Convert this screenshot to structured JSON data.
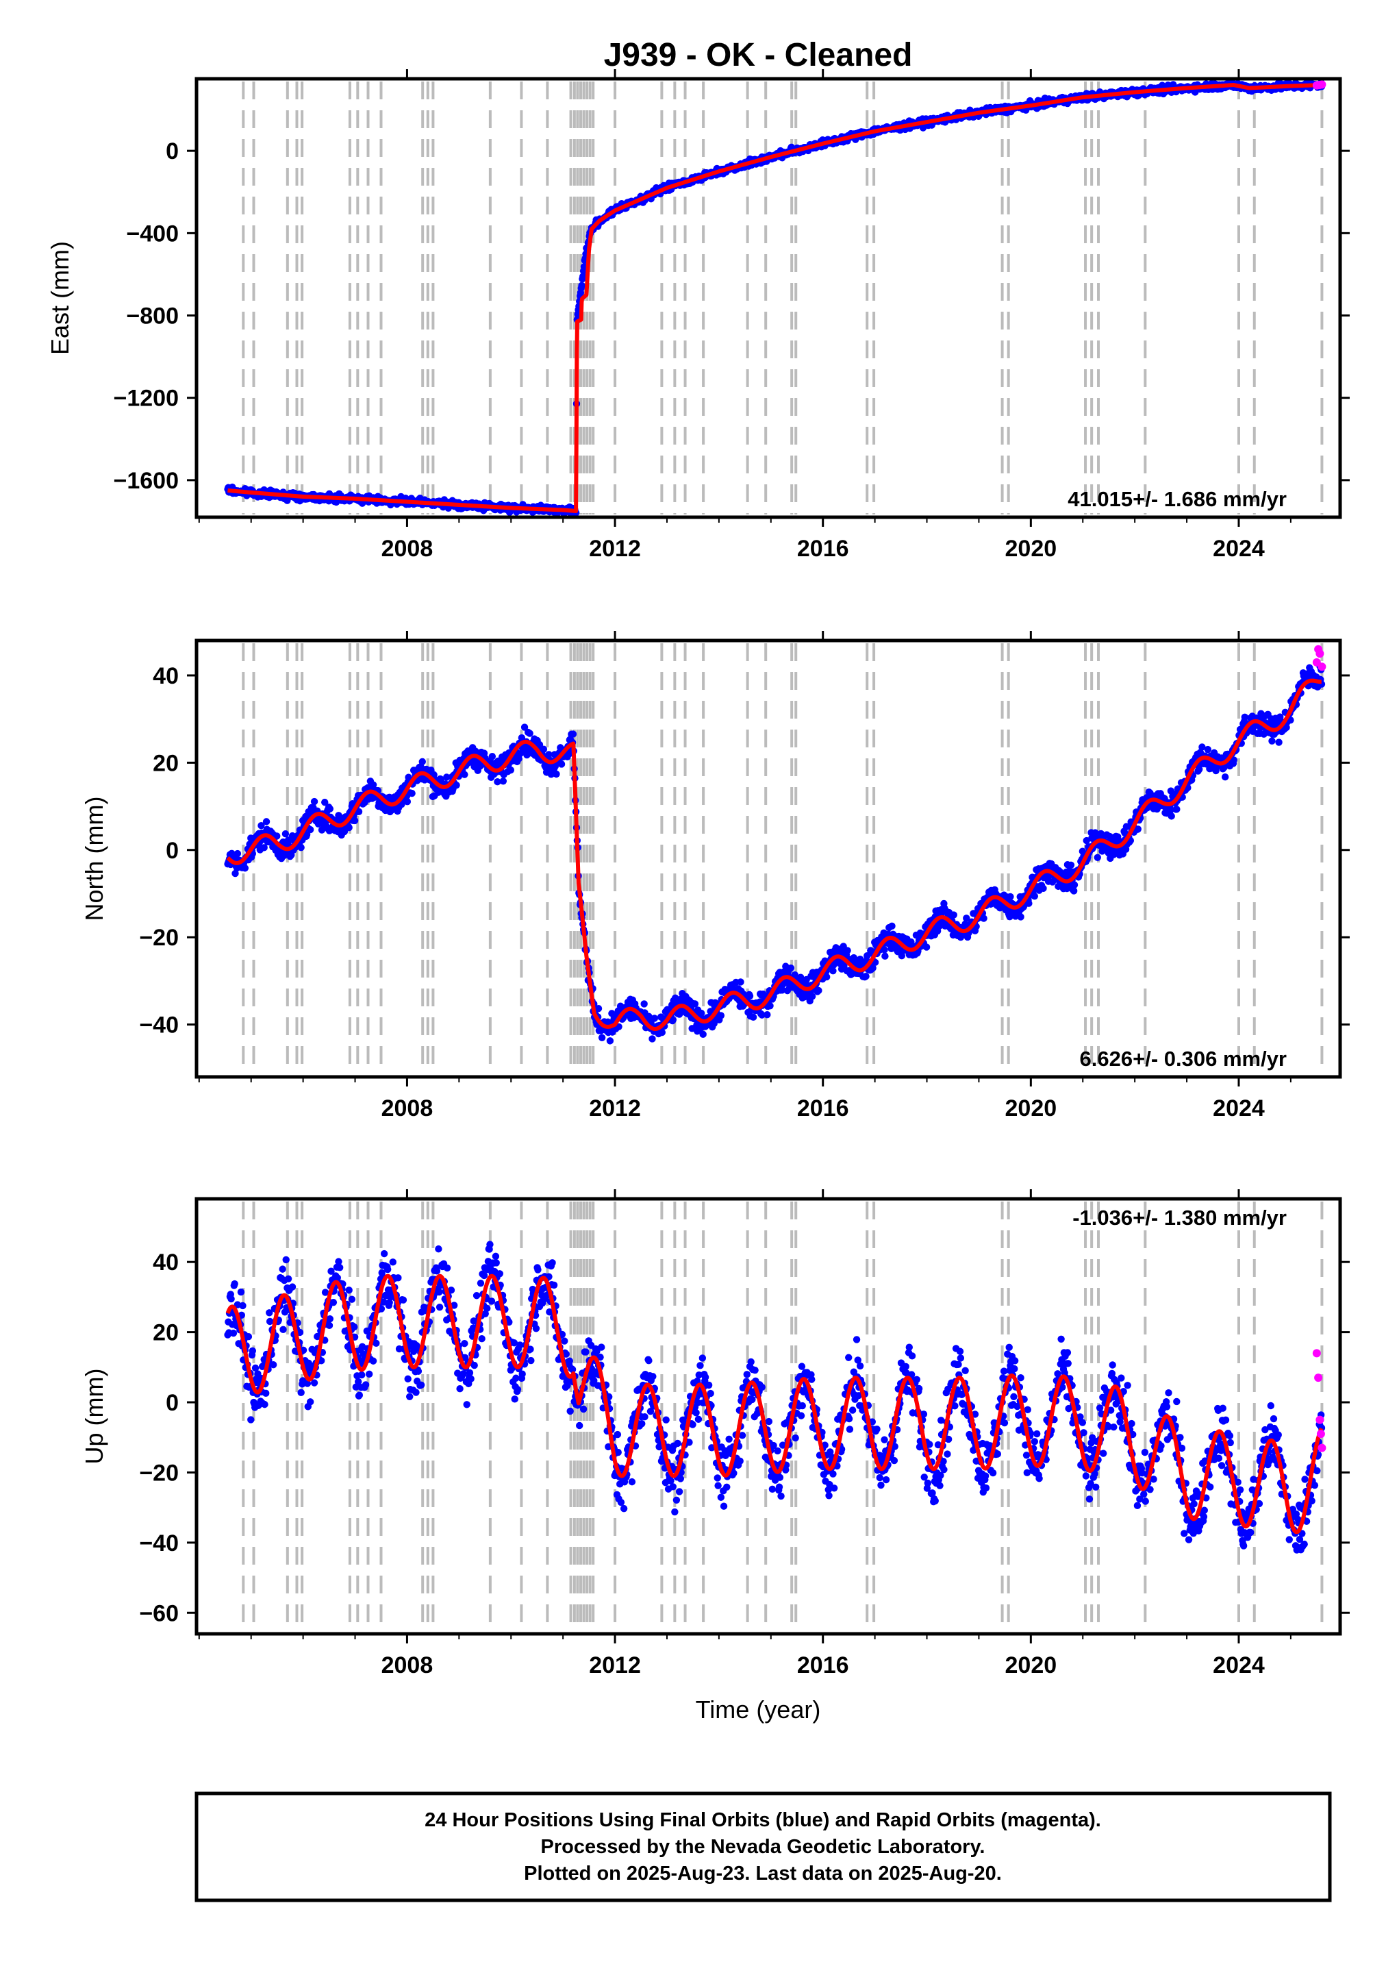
{
  "title": "J939  - OK - Cleaned",
  "x_axis": {
    "label": "Time (year)",
    "range": [
      2003.95,
      2025.95
    ],
    "ticks": [
      2008,
      2012,
      2016,
      2020,
      2024
    ],
    "tick_labels": [
      "2008",
      "2012",
      "2016",
      "2020",
      "2024"
    ]
  },
  "footer": {
    "line1": "24 Hour Positions Using Final Orbits (blue) and Rapid Orbits (magenta).",
    "line2": "Processed by the Nevada Geodetic Laboratory.",
    "line3": "Plotted on 2025-Aug-23. Last data on 2025-Aug-20."
  },
  "colors": {
    "final_orbits": "#0000ff",
    "rapid_orbits": "#ff00ff",
    "model_fit": "#ff0000",
    "event_lines": "#bbbbbb"
  },
  "chart_data": [
    {
      "type": "scatter",
      "panel": "east",
      "ylabel": "East (mm)",
      "ylim": [
        -1780,
        350
      ],
      "yticks": [
        0,
        -400,
        -800,
        -1200,
        -1600
      ],
      "ytick_labels": [
        "0",
        "−400",
        "−800",
        "−1200",
        "−1600"
      ],
      "rate_text": "41.015+/- 1.686 mm/yr",
      "rate_position": "bottom-right",
      "series": [
        {
          "name": "Final Orbits",
          "color": "#0000ff",
          "x": [
            2004.55,
            2005.0,
            2006.0,
            2007.0,
            2008.0,
            2009.0,
            2010.0,
            2011.0,
            2011.25,
            2011.27,
            2011.45,
            2011.55,
            2011.7,
            2012.0,
            2012.5,
            2013.0,
            2014.0,
            2015.0,
            2016.0,
            2017.0,
            2018.0,
            2019.0,
            2020.0,
            2021.0,
            2022.0,
            2023.0,
            2023.9,
            2024.2,
            2025.0,
            2025.6
          ],
          "y": [
            -1650,
            -1660,
            -1680,
            -1690,
            -1705,
            -1720,
            -1735,
            -1745,
            -1750,
            -820,
            -480,
            -380,
            -340,
            -290,
            -235,
            -180,
            -100,
            -30,
            35,
            95,
            140,
            185,
            220,
            260,
            285,
            305,
            320,
            305,
            315,
            320
          ],
          "scatter_spread": 12
        },
        {
          "name": "Rapid Orbits",
          "color": "#ff00ff",
          "x": [
            2025.5,
            2025.55,
            2025.6
          ],
          "y": [
            318,
            320,
            322
          ]
        }
      ],
      "model": {
        "color": "#ff0000",
        "x": [
          2004.55,
          2005.0,
          2006.0,
          2007.0,
          2008.0,
          2009.0,
          2010.0,
          2011.0,
          2011.25,
          2011.27,
          2011.35,
          2011.36,
          2011.45,
          2011.5,
          2011.55,
          2011.7,
          2012.0,
          2012.5,
          2013.0,
          2014.0,
          2015.0,
          2016.0,
          2017.0,
          2018.0,
          2019.0,
          2020.0,
          2021.0,
          2022.0,
          2023.0,
          2023.9,
          2024.2,
          2025.0,
          2025.6
        ],
        "y": [
          -1650,
          -1660,
          -1680,
          -1690,
          -1705,
          -1720,
          -1735,
          -1745,
          -1750,
          -830,
          -820,
          -720,
          -700,
          -480,
          -380,
          -340,
          -290,
          -235,
          -180,
          -100,
          -30,
          35,
          95,
          140,
          185,
          220,
          260,
          285,
          305,
          320,
          305,
          315,
          320
        ]
      }
    },
    {
      "type": "scatter",
      "panel": "north",
      "ylabel": "North (mm)",
      "ylim": [
        -52,
        48
      ],
      "yticks": [
        40,
        20,
        0,
        -20,
        -40
      ],
      "ytick_labels": [
        "40",
        "20",
        "0",
        "−20",
        "−40"
      ],
      "rate_text": "6.626+/- 0.306 mm/yr",
      "rate_position": "bottom-right",
      "seasonal": {
        "amplitude": 2.5,
        "phase": 0.0
      },
      "series": [
        {
          "name": "Final Orbits",
          "color": "#0000ff",
          "x": [
            2004.55,
            2005.5,
            2006.5,
            2007.5,
            2008.5,
            2009.5,
            2010.5,
            2011.2,
            2011.3,
            2011.45,
            2011.6,
            2012.0,
            2012.5,
            2013.0,
            2014.0,
            2015.0,
            2016.0,
            2017.0,
            2018.0,
            2019.0,
            2020.0,
            2021.0,
            2022.0,
            2023.0,
            2024.0,
            2025.0,
            2025.6
          ],
          "y": [
            -1,
            1.5,
            7,
            12,
            16,
            20,
            23,
            22,
            -10,
            -25,
            -36,
            -40,
            -38,
            -39,
            -36,
            -33,
            -28,
            -24,
            -19,
            -15,
            -9,
            -3,
            6,
            16,
            25,
            32,
            41
          ],
          "scatter_spread": 2.0
        },
        {
          "name": "Rapid Orbits",
          "color": "#ff00ff",
          "x": [
            2025.5,
            2025.53,
            2025.56,
            2025.6
          ],
          "y": [
            43,
            46,
            45,
            42
          ]
        }
      ],
      "model": {
        "color": "#ff0000",
        "x": [
          2004.55,
          2005.5,
          2006.5,
          2007.5,
          2008.5,
          2009.5,
          2010.5,
          2011.2,
          2011.3,
          2011.45,
          2011.6,
          2012.0,
          2012.5,
          2013.0,
          2014.0,
          2015.0,
          2016.0,
          2017.0,
          2018.0,
          2019.0,
          2020.0,
          2021.0,
          2022.0,
          2023.0,
          2024.0,
          2025.0,
          2025.6
        ],
        "y": [
          -1,
          1.5,
          7,
          12,
          16,
          20,
          23,
          22,
          -10,
          -25,
          -36,
          -40,
          -38,
          -39,
          -36,
          -33,
          -28,
          -24,
          -19,
          -15,
          -9,
          -3,
          6,
          16,
          25,
          32,
          40
        ]
      }
    },
    {
      "type": "scatter",
      "panel": "up",
      "ylabel": "Up (mm)",
      "ylim": [
        -66,
        58
      ],
      "yticks": [
        40,
        20,
        0,
        -20,
        -40,
        -60
      ],
      "ytick_labels": [
        "40",
        "20",
        "0",
        "−20",
        "−40",
        "−60"
      ],
      "rate_text": "-1.036+/- 1.380 mm/yr",
      "rate_position": "top-right",
      "seasonal": {
        "amplitude": 13,
        "phase": 0.38
      },
      "series": [
        {
          "name": "Final Orbits",
          "color": "#0000ff",
          "x": [
            2004.55,
            2005.5,
            2006.5,
            2007.5,
            2008.5,
            2009.5,
            2010.5,
            2011.2,
            2011.3,
            2012.0,
            2013.0,
            2014.0,
            2015.0,
            2016.0,
            2017.0,
            2018.0,
            2019.0,
            2020.0,
            2021.0,
            2022.0,
            2022.5,
            2023.0,
            2024.0,
            2025.0,
            2025.6
          ],
          "y": [
            14,
            17,
            21,
            23,
            23,
            23,
            23,
            20,
            6,
            -8,
            -8,
            -8,
            -7,
            -6,
            -6,
            -6,
            -6,
            -5,
            -6,
            -10,
            -16,
            -20,
            -22,
            -25,
            -20
          ],
          "scatter_spread": 6.5
        },
        {
          "name": "Rapid Orbits",
          "color": "#ff00ff",
          "x": [
            2025.5,
            2025.53,
            2025.56,
            2025.58,
            2025.6
          ],
          "y": [
            14,
            7,
            -5,
            -9,
            -13
          ]
        }
      ],
      "model": {
        "color": "#ff0000",
        "x": [
          2004.55,
          2005.5,
          2006.5,
          2007.5,
          2008.5,
          2009.5,
          2010.5,
          2011.2,
          2011.3,
          2012.0,
          2013.0,
          2014.0,
          2015.0,
          2016.0,
          2017.0,
          2018.0,
          2019.0,
          2020.0,
          2021.0,
          2022.0,
          2022.5,
          2023.0,
          2024.0,
          2025.0,
          2025.6
        ],
        "y": [
          14,
          17,
          21,
          23,
          23,
          23,
          23,
          20,
          6,
          -8,
          -8,
          -8,
          -7,
          -6,
          -6,
          -6,
          -6,
          -5,
          -6,
          -10,
          -16,
          -20,
          -22,
          -25,
          -20
        ]
      }
    }
  ],
  "event_lines": [
    2004.85,
    2005.05,
    2005.7,
    2005.88,
    2005.98,
    2006.9,
    2007.05,
    2007.25,
    2007.5,
    2008.3,
    2008.4,
    2008.5,
    2009.6,
    2010.2,
    2010.7,
    2011.15,
    2011.22,
    2011.28,
    2011.34,
    2011.4,
    2011.46,
    2011.52,
    2011.58,
    2012.0,
    2012.9,
    2013.15,
    2013.35,
    2013.7,
    2014.55,
    2014.9,
    2015.4,
    2015.48,
    2016.85,
    2016.98,
    2019.45,
    2019.57,
    2021.05,
    2021.17,
    2021.3,
    2022.2,
    2024.0,
    2024.3,
    2025.6
  ]
}
